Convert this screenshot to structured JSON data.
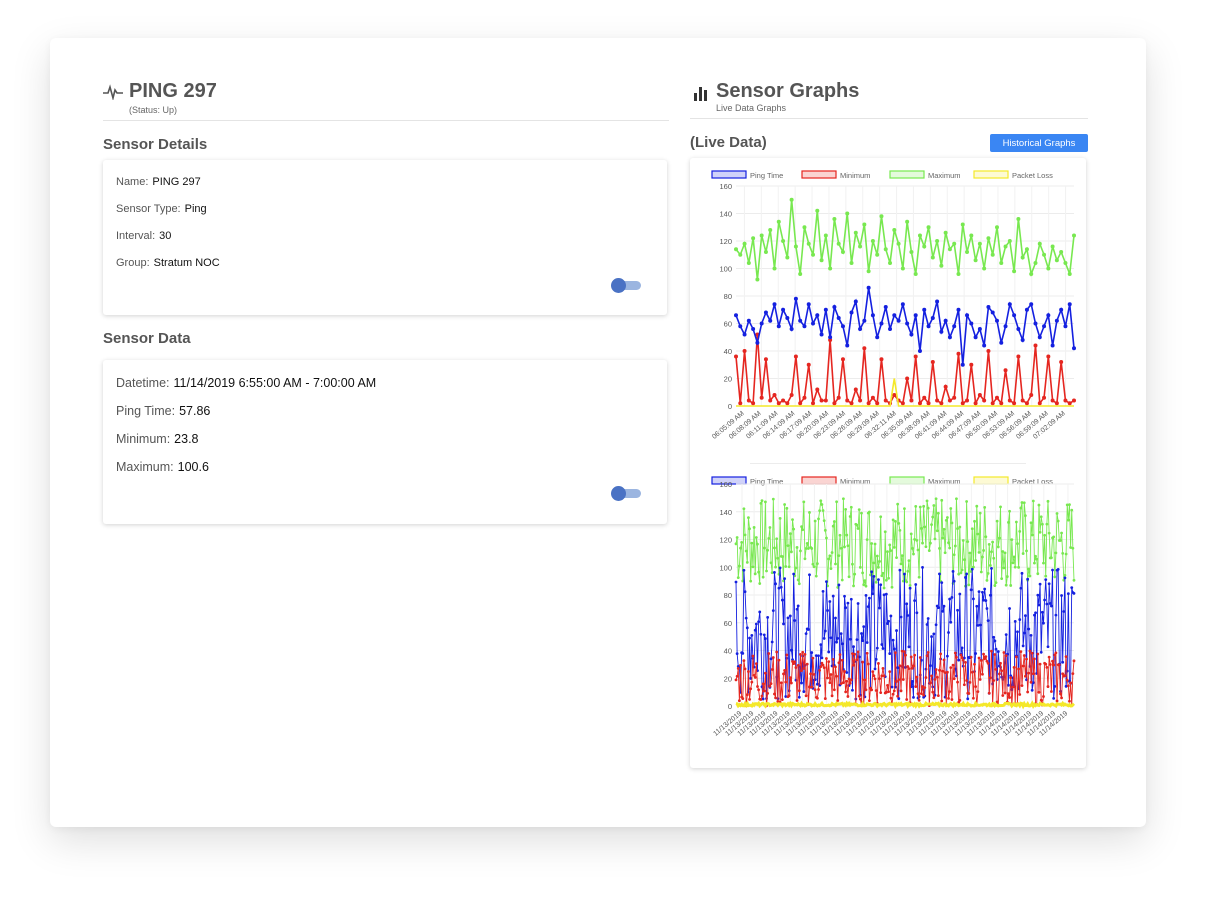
{
  "sensor": {
    "title": "PING 297",
    "status": "(Status: Up)",
    "icon": "heartbeat-icon"
  },
  "details": {
    "section_title": "Sensor Details",
    "rows": [
      {
        "label": "Name:",
        "value": "PING 297"
      },
      {
        "label": "Sensor Type:",
        "value": "Ping"
      },
      {
        "label": "Interval:",
        "value": "30"
      },
      {
        "label": "Group:",
        "value": "Stratum NOC"
      }
    ]
  },
  "data": {
    "section_title": "Sensor Data",
    "rows": [
      {
        "label": "Datetime:",
        "value": "11/14/2019 6:55:00 AM - 7:00:00 AM"
      },
      {
        "label": "Ping Time:",
        "value": "57.86"
      },
      {
        "label": "Minimum:",
        "value": "23.8"
      },
      {
        "label": "Maximum:",
        "value": "100.6"
      }
    ]
  },
  "graphs": {
    "title": "Sensor Graphs",
    "subtitle": "Live Data Graphs",
    "icon": "bar-chart-icon",
    "live_label": "(Live Data)",
    "historical_button": "Historical Graphs"
  },
  "colors": {
    "ping": "#1420e0",
    "minimum": "#e52620",
    "maximum": "#78e850",
    "packet_loss": "#f4e82a",
    "accent": "#3a86f3"
  },
  "chart_data": [
    {
      "type": "line",
      "legend": [
        "Ping Time",
        "Minimum",
        "Maximum",
        "Packet Loss"
      ],
      "legend_position": "top",
      "ylim": [
        0,
        160
      ],
      "yticks": [
        0,
        20,
        40,
        60,
        80,
        100,
        120,
        140,
        160
      ],
      "grid": true,
      "xticks": [
        "06:05:09 AM",
        "06:08:09 AM",
        "06:11:09 AM",
        "06:14:09 AM",
        "06:17:09 AM",
        "06:20:09 AM",
        "06:23:09 AM",
        "06:26:09 AM",
        "06:29:09 AM",
        "06:32:11 AM",
        "06:35:09 AM",
        "06:38:09 AM",
        "06:41:09 AM",
        "06:44:09 AM",
        "06:47:09 AM",
        "06:50:09 AM",
        "06:53:09 AM",
        "06:56:09 AM",
        "06:59:09 AM",
        "07:02:09 AM"
      ],
      "series": [
        {
          "name": "Ping Time",
          "values": [
            66,
            58,
            52,
            62,
            56,
            46,
            60,
            68,
            62,
            74,
            58,
            70,
            64,
            56,
            78,
            62,
            58,
            74,
            60,
            66,
            52,
            70,
            50,
            72,
            64,
            58,
            44,
            68,
            76,
            56,
            62,
            86,
            66,
            50,
            60,
            72,
            56,
            66,
            62,
            74,
            60,
            52,
            66,
            40,
            70,
            58,
            64,
            76,
            54,
            62,
            50,
            58,
            70,
            30,
            66,
            60,
            50,
            56,
            44,
            72,
            68,
            62,
            46,
            58,
            74,
            66,
            56,
            48,
            70,
            74,
            60,
            50,
            58,
            66,
            44,
            62,
            70,
            58,
            74,
            42
          ]
        },
        {
          "name": "Minimum",
          "values": [
            36,
            2,
            40,
            4,
            2,
            52,
            6,
            34,
            4,
            8,
            2,
            4,
            2,
            8,
            36,
            2,
            6,
            30,
            2,
            12,
            4,
            4,
            48,
            2,
            6,
            34,
            4,
            2,
            12,
            4,
            42,
            2,
            6,
            2,
            34,
            4,
            2,
            8,
            4,
            2,
            20,
            4,
            36,
            2,
            6,
            2,
            32,
            4,
            2,
            14,
            4,
            6,
            38,
            2,
            4,
            30,
            2,
            8,
            4,
            40,
            2,
            6,
            2,
            26,
            4,
            2,
            36,
            4,
            2,
            8,
            44,
            2,
            6,
            36,
            4,
            2,
            32,
            4,
            2,
            4
          ]
        },
        {
          "name": "Maximum",
          "values": [
            114,
            110,
            118,
            104,
            122,
            92,
            124,
            112,
            128,
            100,
            134,
            120,
            108,
            150,
            116,
            96,
            130,
            118,
            110,
            142,
            106,
            124,
            100,
            136,
            118,
            112,
            140,
            104,
            126,
            116,
            132,
            98,
            120,
            110,
            138,
            114,
            104,
            128,
            118,
            100,
            134,
            112,
            96,
            124,
            116,
            130,
            108,
            120,
            102,
            126,
            114,
            118,
            96,
            132,
            112,
            124,
            106,
            118,
            100,
            122,
            110,
            130,
            104,
            116,
            120,
            98,
            136,
            108,
            114,
            96,
            104,
            118,
            110,
            100,
            116,
            106,
            112,
            104,
            96,
            124
          ]
        },
        {
          "name": "Packet Loss",
          "values": [
            0,
            0,
            0,
            0,
            0,
            0,
            0,
            0,
            0,
            0,
            0,
            0,
            0,
            0,
            0,
            0,
            0,
            0,
            0,
            0,
            0,
            0,
            0,
            0,
            0,
            0,
            0,
            0,
            0,
            0,
            0,
            0,
            0,
            0,
            0,
            0,
            0,
            20,
            0,
            0,
            0,
            0,
            0,
            0,
            0,
            0,
            0,
            0,
            0,
            0,
            0,
            0,
            0,
            0,
            0,
            0,
            0,
            0,
            0,
            0,
            0,
            0,
            0,
            0,
            0,
            0,
            0,
            0,
            0,
            0,
            0,
            0,
            0,
            0,
            0,
            0,
            0,
            0,
            0,
            0
          ]
        }
      ]
    },
    {
      "type": "line",
      "legend": [
        "Ping Time",
        "Minimum",
        "Maximum",
        "Packet Loss"
      ],
      "legend_position": "top",
      "ylim": [
        0,
        160
      ],
      "yticks": [
        0,
        20,
        40,
        60,
        80,
        100,
        120,
        140,
        160
      ],
      "grid": true,
      "xticks": [
        "11/13/2019",
        "11/13/2019",
        "11/13/2019",
        "11/13/2019",
        "11/13/2019",
        "11/13/2019",
        "11/13/2019",
        "11/13/2019",
        "11/13/2019",
        "11/13/2019",
        "11/13/2019",
        "11/13/2019",
        "11/13/2019",
        "11/13/2019",
        "11/13/2019",
        "11/13/2019",
        "11/13/2019",
        "11/13/2019",
        "11/13/2019",
        "11/13/2019",
        "11/13/2019",
        "11/13/2019",
        "11/14/2019",
        "11/14/2019",
        "11/14/2019",
        "11/14/2019",
        "11/14/2019",
        "11/14/2019"
      ],
      "series_summary": [
        {
          "name": "Ping Time",
          "range": [
            5,
            100
          ]
        },
        {
          "name": "Minimum",
          "range": [
            0,
            40
          ]
        },
        {
          "name": "Maximum",
          "range": [
            85,
            150
          ]
        },
        {
          "name": "Packet Loss",
          "range": [
            0,
            2
          ]
        }
      ]
    }
  ]
}
